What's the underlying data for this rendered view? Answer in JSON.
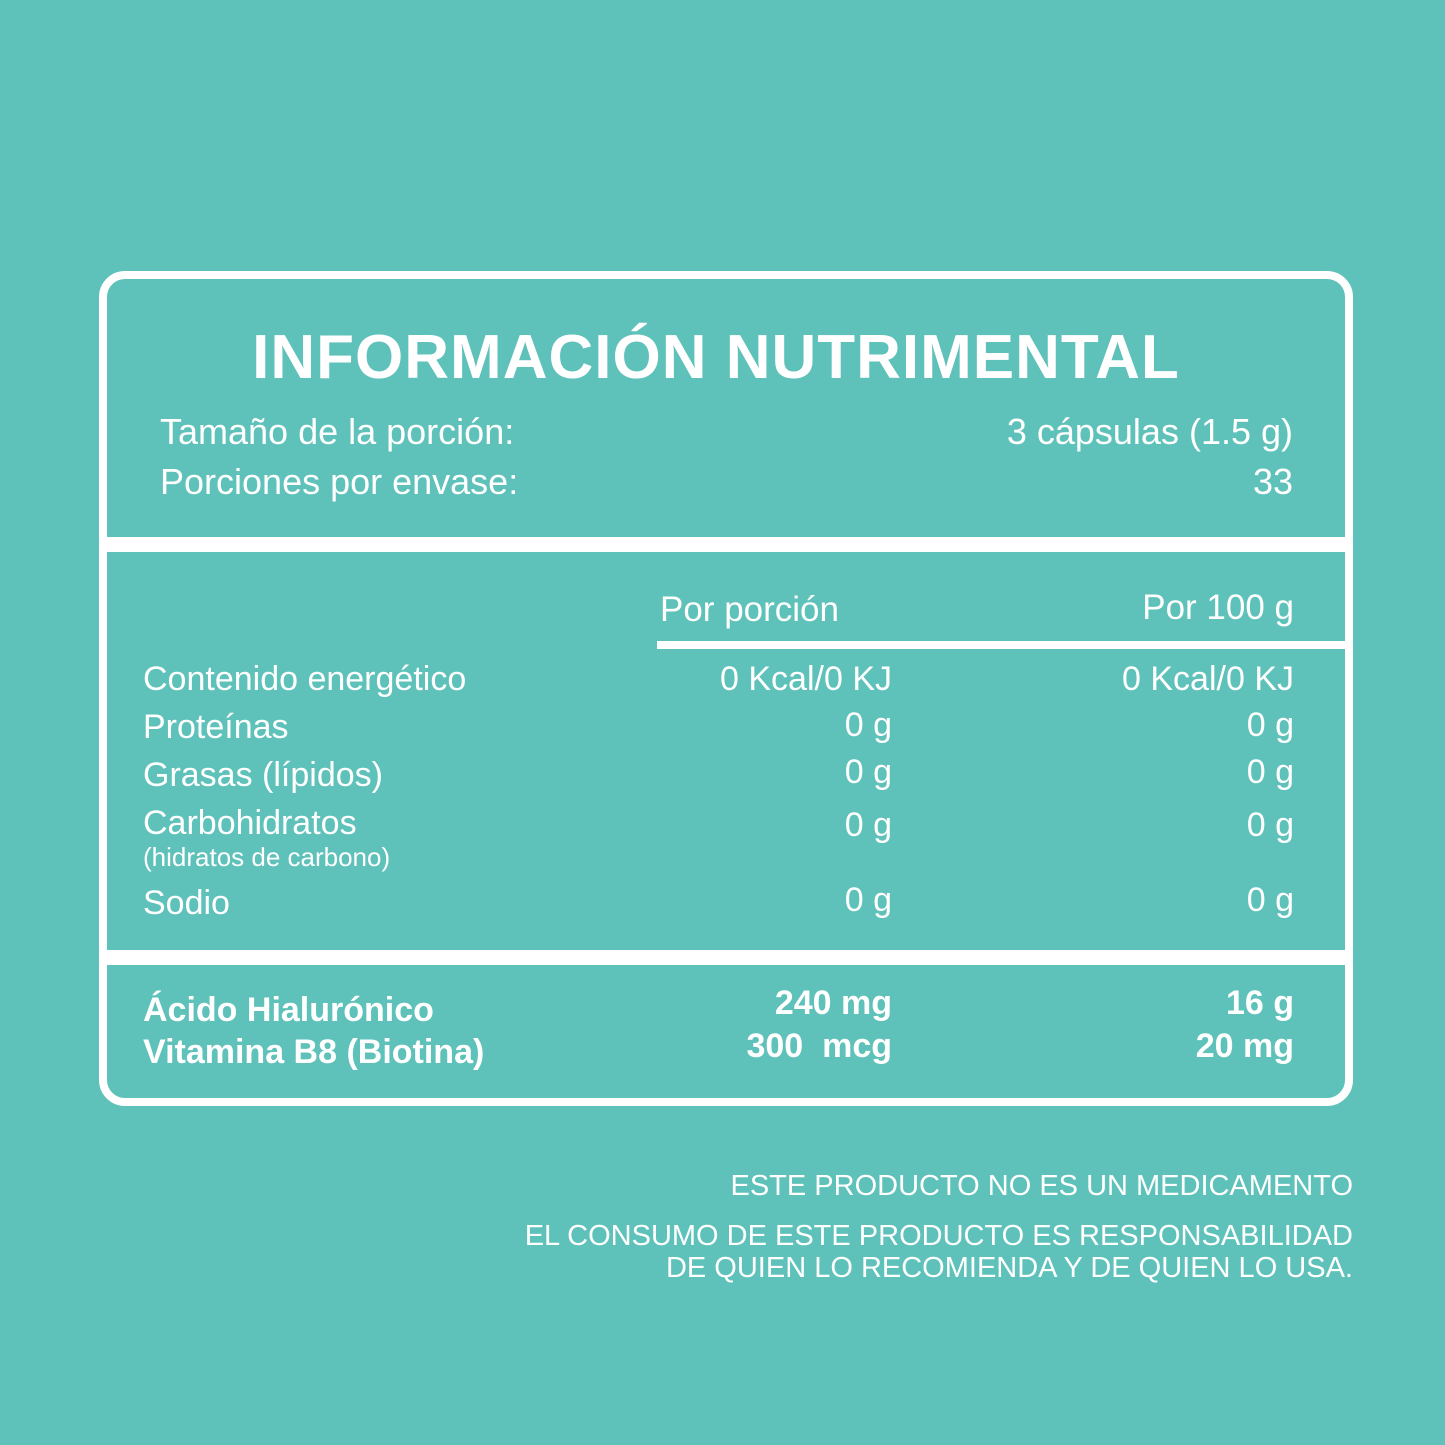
{
  "title": "INFORMACIÓN NUTRIMENTAL",
  "serving": {
    "size_label": "Tamaño de la porción:",
    "size_value": "3 cápsulas (1.5 g)",
    "per_container_label": "Porciones por envase:",
    "per_container_value": "33"
  },
  "columns": {
    "per_serving": "Por porción",
    "per_100g": "Por 100 g"
  },
  "nutrients": [
    {
      "name": "Contenido energético",
      "per_serving": "0 Kcal/0 KJ",
      "per_100g": "0 Kcal/0 KJ"
    },
    {
      "name": "Proteínas",
      "per_serving": "0 g",
      "per_100g": "0 g"
    },
    {
      "name": "Grasas (lípidos)",
      "per_serving": "0 g",
      "per_100g": "0 g"
    },
    {
      "name": "Carbohidratos",
      "note": "(hidratos de carbono)",
      "per_serving": "0 g",
      "per_100g": "0 g"
    },
    {
      "name": "Sodio",
      "per_serving": "0 g",
      "per_100g": "0 g"
    }
  ],
  "actives": [
    {
      "name": "Ácido Hialurónico",
      "per_serving": "240 mg",
      "per_100g": "16 g"
    },
    {
      "name": "Vitamina B8 (Biotina)",
      "per_serving": "300  mcg",
      "per_100g": "20 mg"
    }
  ],
  "disclaimer": {
    "line1": "ESTE PRODUCTO NO ES UN MEDICAMENTO",
    "line2": "EL CONSUMO DE ESTE PRODUCTO ES RESPONSABILIDAD",
    "line3": "DE QUIEN LO RECOMIENDA Y DE QUIEN LO USA."
  },
  "colors": {
    "background": "#5ec1ba",
    "foreground": "#ffffff"
  }
}
